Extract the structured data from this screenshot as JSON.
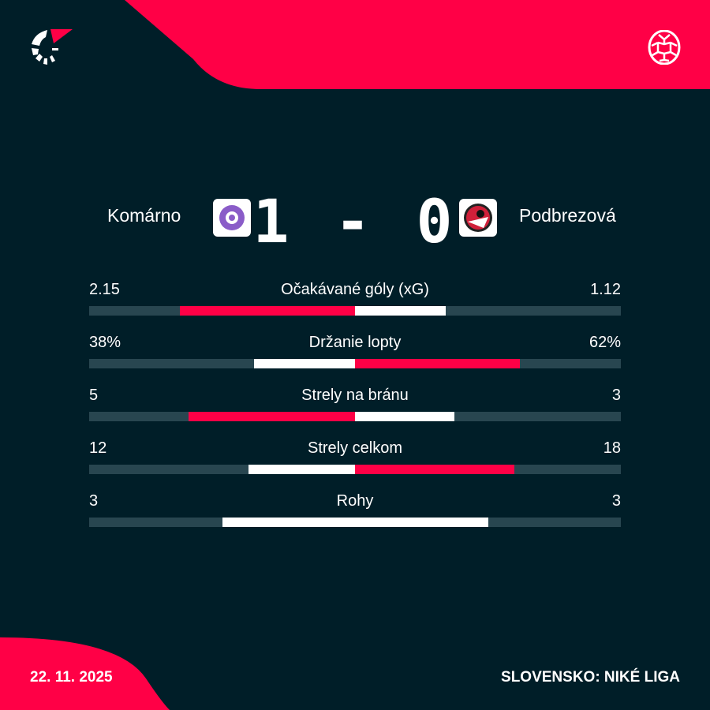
{
  "colors": {
    "background": "#001e28",
    "accent": "#ff0046",
    "bar_track": "#284650",
    "bar_loser": "#ffffff"
  },
  "header": {
    "logo_icon": "flashscore-logo",
    "sport_icon": "soccer-ball-icon"
  },
  "match": {
    "home": "Komárno",
    "away": "Podbrezová",
    "score": "1 - 0"
  },
  "stats": [
    {
      "label": "Očakávané góly (xG)",
      "home": "2.15",
      "away": "1.12",
      "home_value": 2.15,
      "away_value": 1.12
    },
    {
      "label": "Držanie lopty",
      "home": "38%",
      "away": "62%",
      "home_value": 38,
      "away_value": 62
    },
    {
      "label": "Strely na bránu",
      "home": "5",
      "away": "3",
      "home_value": 5,
      "away_value": 3
    },
    {
      "label": "Strely celkom",
      "home": "12",
      "away": "18",
      "home_value": 12,
      "away_value": 18
    },
    {
      "label": "Rohy",
      "home": "3",
      "away": "3",
      "home_value": 3,
      "away_value": 3
    }
  ],
  "footer": {
    "date": "22. 11. 2025",
    "league": "SLOVENSKO: NIKÉ LIGA"
  }
}
